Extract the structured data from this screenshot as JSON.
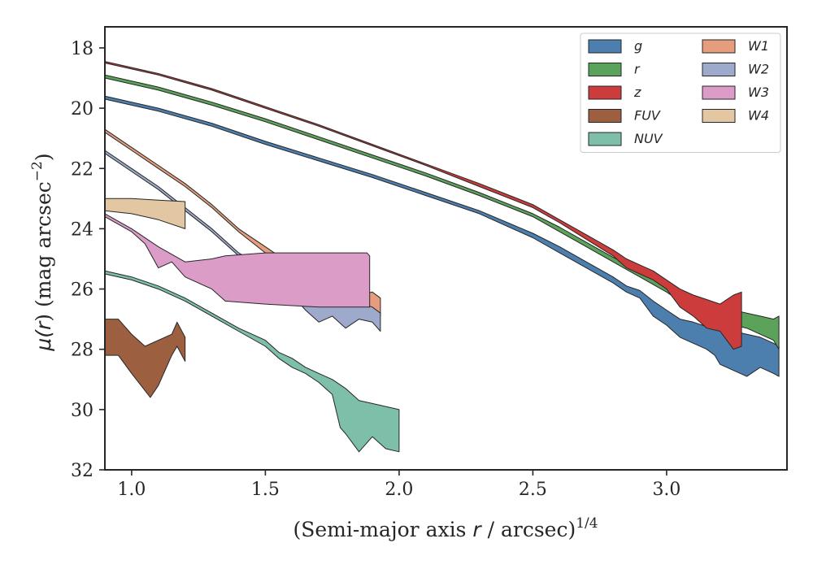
{
  "chart_data": {
    "type": "area",
    "xlabel": {
      "pre": "(Semi-major axis ",
      "var": "r",
      "post": " / arcsec)",
      "sup": "1/4"
    },
    "ylabel": {
      "pre": "μ(",
      "var": "r",
      "post": ") (mag arcsec",
      "sup": "−2",
      "close": ")"
    },
    "xlim": [
      0.9,
      3.45
    ],
    "ylim": [
      32.0,
      17.3
    ],
    "y_inverted": true,
    "xticks": [
      1.0,
      1.5,
      2.0,
      2.5,
      3.0
    ],
    "xtick_labels": [
      "1.0",
      "1.5",
      "2.0",
      "2.5",
      "3.0"
    ],
    "yticks": [
      18,
      20,
      22,
      24,
      26,
      28,
      30,
      32
    ],
    "ytick_labels": [
      "18",
      "20",
      "22",
      "24",
      "26",
      "28",
      "30",
      "32"
    ],
    "grid": false,
    "legend": {
      "placement": "top-right",
      "columns": 2
    },
    "series": [
      {
        "name": "g",
        "color": "#4c7fae",
        "upper": [
          [
            0.9,
            19.6
          ],
          [
            1.1,
            20.0
          ],
          [
            1.3,
            20.5
          ],
          [
            1.5,
            21.1
          ],
          [
            1.7,
            21.65
          ],
          [
            1.9,
            22.2
          ],
          [
            2.1,
            22.8
          ],
          [
            2.3,
            23.4
          ],
          [
            2.5,
            24.15
          ],
          [
            2.6,
            24.6
          ],
          [
            2.7,
            25.1
          ],
          [
            2.8,
            25.6
          ],
          [
            2.85,
            25.9
          ],
          [
            2.9,
            26.05
          ],
          [
            2.95,
            26.4
          ],
          [
            3.0,
            26.7
          ],
          [
            3.05,
            27.0
          ],
          [
            3.1,
            27.1
          ],
          [
            3.15,
            27.25
          ],
          [
            3.2,
            27.2
          ],
          [
            3.25,
            27.4
          ],
          [
            3.3,
            27.5
          ],
          [
            3.35,
            27.6
          ],
          [
            3.4,
            27.8
          ],
          [
            3.42,
            27.9
          ]
        ],
        "lower": [
          [
            0.9,
            19.7
          ],
          [
            1.1,
            20.1
          ],
          [
            1.3,
            20.6
          ],
          [
            1.5,
            21.2
          ],
          [
            1.7,
            21.75
          ],
          [
            1.9,
            22.3
          ],
          [
            2.1,
            22.9
          ],
          [
            2.3,
            23.5
          ],
          [
            2.5,
            24.3
          ],
          [
            2.6,
            24.8
          ],
          [
            2.7,
            25.3
          ],
          [
            2.8,
            25.8
          ],
          [
            2.85,
            26.1
          ],
          [
            2.9,
            26.3
          ],
          [
            2.95,
            26.9
          ],
          [
            3.0,
            27.2
          ],
          [
            3.05,
            27.6
          ],
          [
            3.1,
            27.8
          ],
          [
            3.15,
            28.0
          ],
          [
            3.18,
            28.2
          ],
          [
            3.2,
            28.5
          ],
          [
            3.25,
            28.7
          ],
          [
            3.3,
            28.9
          ],
          [
            3.35,
            28.6
          ],
          [
            3.4,
            28.8
          ],
          [
            3.42,
            28.9
          ]
        ]
      },
      {
        "name": "r",
        "color": "#5ba35b",
        "upper": [
          [
            0.9,
            18.9
          ],
          [
            1.1,
            19.3
          ],
          [
            1.3,
            19.8
          ],
          [
            1.5,
            20.35
          ],
          [
            1.7,
            20.95
          ],
          [
            1.9,
            21.55
          ],
          [
            2.1,
            22.15
          ],
          [
            2.3,
            22.8
          ],
          [
            2.5,
            23.5
          ],
          [
            2.6,
            23.95
          ],
          [
            2.7,
            24.45
          ],
          [
            2.8,
            24.95
          ],
          [
            2.9,
            25.4
          ],
          [
            3.0,
            25.75
          ],
          [
            3.05,
            26.05
          ],
          [
            3.1,
            26.35
          ],
          [
            3.15,
            26.5
          ],
          [
            3.2,
            26.6
          ],
          [
            3.25,
            26.7
          ],
          [
            3.3,
            26.8
          ],
          [
            3.35,
            26.9
          ],
          [
            3.4,
            27.0
          ],
          [
            3.42,
            26.9
          ]
        ],
        "lower": [
          [
            0.9,
            19.0
          ],
          [
            1.1,
            19.4
          ],
          [
            1.3,
            19.9
          ],
          [
            1.5,
            20.45
          ],
          [
            1.7,
            21.05
          ],
          [
            1.9,
            21.65
          ],
          [
            2.1,
            22.25
          ],
          [
            2.3,
            22.9
          ],
          [
            2.5,
            23.6
          ],
          [
            2.6,
            24.1
          ],
          [
            2.7,
            24.6
          ],
          [
            2.8,
            25.1
          ],
          [
            2.9,
            25.6
          ],
          [
            3.0,
            26.1
          ],
          [
            3.05,
            26.4
          ],
          [
            3.1,
            26.7
          ],
          [
            3.15,
            26.9
          ],
          [
            3.2,
            27.0
          ],
          [
            3.25,
            27.2
          ],
          [
            3.3,
            27.3
          ],
          [
            3.35,
            27.5
          ],
          [
            3.4,
            27.7
          ],
          [
            3.42,
            28.0
          ]
        ]
      },
      {
        "name": "z",
        "color": "#cc3c3c",
        "upper": [
          [
            0.9,
            18.45
          ],
          [
            1.1,
            18.85
          ],
          [
            1.3,
            19.35
          ],
          [
            1.5,
            19.95
          ],
          [
            1.7,
            20.55
          ],
          [
            1.9,
            21.2
          ],
          [
            2.1,
            21.85
          ],
          [
            2.3,
            22.5
          ],
          [
            2.5,
            23.2
          ],
          [
            2.6,
            23.7
          ],
          [
            2.7,
            24.2
          ],
          [
            2.8,
            24.7
          ],
          [
            2.85,
            25.0
          ],
          [
            2.9,
            25.2
          ],
          [
            2.95,
            25.4
          ],
          [
            3.0,
            25.7
          ],
          [
            3.05,
            26.0
          ],
          [
            3.1,
            26.2
          ],
          [
            3.15,
            26.35
          ],
          [
            3.2,
            26.5
          ],
          [
            3.25,
            26.2
          ],
          [
            3.28,
            26.1
          ]
        ],
        "lower": [
          [
            0.9,
            18.5
          ],
          [
            1.1,
            18.9
          ],
          [
            1.3,
            19.4
          ],
          [
            1.5,
            20.0
          ],
          [
            1.7,
            20.6
          ],
          [
            1.9,
            21.25
          ],
          [
            2.1,
            21.9
          ],
          [
            2.3,
            22.6
          ],
          [
            2.5,
            23.3
          ],
          [
            2.6,
            23.8
          ],
          [
            2.7,
            24.35
          ],
          [
            2.8,
            24.9
          ],
          [
            2.85,
            25.3
          ],
          [
            2.9,
            25.5
          ],
          [
            2.95,
            25.7
          ],
          [
            3.0,
            26.0
          ],
          [
            3.05,
            26.6
          ],
          [
            3.1,
            26.9
          ],
          [
            3.15,
            27.3
          ],
          [
            3.2,
            27.4
          ],
          [
            3.25,
            28.0
          ],
          [
            3.28,
            27.9
          ]
        ]
      },
      {
        "name": "FUV",
        "color": "#9c5f3f",
        "upper": [
          [
            0.9,
            27.0
          ],
          [
            0.95,
            27.0
          ],
          [
            1.0,
            27.5
          ],
          [
            1.05,
            27.9
          ],
          [
            1.1,
            27.7
          ],
          [
            1.15,
            27.5
          ],
          [
            1.17,
            27.1
          ],
          [
            1.2,
            27.6
          ]
        ],
        "lower": [
          [
            0.9,
            28.2
          ],
          [
            0.95,
            28.2
          ],
          [
            1.0,
            28.8
          ],
          [
            1.07,
            29.6
          ],
          [
            1.1,
            29.2
          ],
          [
            1.15,
            28.2
          ],
          [
            1.17,
            27.9
          ],
          [
            1.2,
            28.4
          ]
        ]
      },
      {
        "name": "NUV",
        "color": "#7dbfa8",
        "upper": [
          [
            0.9,
            25.4
          ],
          [
            1.0,
            25.6
          ],
          [
            1.1,
            25.9
          ],
          [
            1.2,
            26.3
          ],
          [
            1.3,
            26.8
          ],
          [
            1.4,
            27.3
          ],
          [
            1.5,
            27.7
          ],
          [
            1.55,
            28.1
          ],
          [
            1.6,
            28.3
          ],
          [
            1.65,
            28.6
          ],
          [
            1.7,
            28.8
          ],
          [
            1.75,
            29.0
          ],
          [
            1.8,
            29.3
          ],
          [
            1.85,
            29.7
          ],
          [
            1.9,
            29.8
          ],
          [
            1.95,
            29.9
          ],
          [
            2.0,
            30.0
          ]
        ],
        "lower": [
          [
            0.9,
            25.5
          ],
          [
            1.0,
            25.7
          ],
          [
            1.1,
            26.0
          ],
          [
            1.2,
            26.4
          ],
          [
            1.3,
            26.9
          ],
          [
            1.4,
            27.4
          ],
          [
            1.5,
            27.9
          ],
          [
            1.55,
            28.3
          ],
          [
            1.6,
            28.6
          ],
          [
            1.65,
            28.8
          ],
          [
            1.7,
            29.1
          ],
          [
            1.75,
            29.5
          ],
          [
            1.78,
            30.6
          ],
          [
            1.8,
            30.8
          ],
          [
            1.85,
            31.4
          ],
          [
            1.9,
            30.9
          ],
          [
            1.95,
            31.3
          ],
          [
            2.0,
            31.4
          ]
        ]
      },
      {
        "name": "W1",
        "color": "#e59d7d",
        "upper": [
          [
            0.9,
            20.7
          ],
          [
            1.0,
            21.3
          ],
          [
            1.1,
            21.9
          ],
          [
            1.2,
            22.5
          ],
          [
            1.3,
            23.2
          ],
          [
            1.4,
            24.0
          ],
          [
            1.5,
            24.6
          ],
          [
            1.6,
            25.2
          ],
          [
            1.7,
            25.7
          ],
          [
            1.8,
            26.1
          ],
          [
            1.85,
            26.2
          ],
          [
            1.9,
            26.1
          ],
          [
            1.93,
            26.3
          ]
        ],
        "lower": [
          [
            0.9,
            20.8
          ],
          [
            1.0,
            21.4
          ],
          [
            1.1,
            22.0
          ],
          [
            1.2,
            22.6
          ],
          [
            1.3,
            23.3
          ],
          [
            1.4,
            24.1
          ],
          [
            1.5,
            24.8
          ],
          [
            1.6,
            25.4
          ],
          [
            1.7,
            25.9
          ],
          [
            1.8,
            26.4
          ],
          [
            1.85,
            26.6
          ],
          [
            1.9,
            26.7
          ],
          [
            1.93,
            26.9
          ]
        ]
      },
      {
        "name": "W2",
        "color": "#9eaacb",
        "upper": [
          [
            0.9,
            21.4
          ],
          [
            1.0,
            22.0
          ],
          [
            1.1,
            22.6
          ],
          [
            1.2,
            23.3
          ],
          [
            1.3,
            24.0
          ],
          [
            1.4,
            24.8
          ],
          [
            1.5,
            25.3
          ],
          [
            1.6,
            25.8
          ],
          [
            1.7,
            26.1
          ],
          [
            1.8,
            26.3
          ],
          [
            1.9,
            26.6
          ],
          [
            1.93,
            26.8
          ]
        ],
        "lower": [
          [
            0.9,
            21.5
          ],
          [
            1.0,
            22.1
          ],
          [
            1.1,
            22.7
          ],
          [
            1.2,
            23.4
          ],
          [
            1.3,
            24.1
          ],
          [
            1.4,
            24.9
          ],
          [
            1.5,
            25.5
          ],
          [
            1.6,
            26.2
          ],
          [
            1.65,
            26.7
          ],
          [
            1.7,
            27.1
          ],
          [
            1.75,
            26.9
          ],
          [
            1.8,
            27.3
          ],
          [
            1.85,
            27.0
          ],
          [
            1.9,
            27.1
          ],
          [
            1.93,
            27.4
          ]
        ]
      },
      {
        "name": "W3",
        "color": "#dc9cc8",
        "upper": [
          [
            0.9,
            23.5
          ],
          [
            1.0,
            24.0
          ],
          [
            1.1,
            24.6
          ],
          [
            1.2,
            25.1
          ],
          [
            1.3,
            25.0
          ],
          [
            1.35,
            24.9
          ],
          [
            1.5,
            24.8
          ],
          [
            1.7,
            24.8
          ],
          [
            1.88,
            24.8
          ],
          [
            1.89,
            24.9
          ]
        ],
        "lower": [
          [
            0.9,
            23.6
          ],
          [
            1.0,
            24.1
          ],
          [
            1.05,
            24.5
          ],
          [
            1.1,
            25.3
          ],
          [
            1.15,
            25.1
          ],
          [
            1.2,
            25.6
          ],
          [
            1.3,
            26.0
          ],
          [
            1.35,
            26.4
          ],
          [
            1.5,
            26.5
          ],
          [
            1.7,
            26.6
          ],
          [
            1.89,
            26.6
          ]
        ]
      },
      {
        "name": "W4",
        "color": "#e2c7a2",
        "upper": [
          [
            0.9,
            23.0
          ],
          [
            1.0,
            23.0
          ],
          [
            1.1,
            23.05
          ],
          [
            1.2,
            23.1
          ]
        ],
        "lower": [
          [
            0.9,
            23.4
          ],
          [
            1.0,
            23.5
          ],
          [
            1.1,
            23.7
          ],
          [
            1.2,
            24.0
          ]
        ]
      }
    ]
  }
}
